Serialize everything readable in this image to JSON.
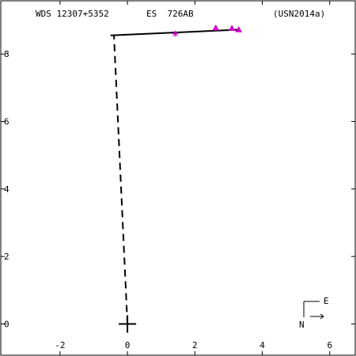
{
  "header": {
    "wds": "WDS 12307+5352",
    "discoverer": "ES  726AB",
    "reference": "(USN2014a)"
  },
  "compass": {
    "east": "E",
    "north": "N"
  },
  "chart_data": {
    "type": "scatter",
    "title": "",
    "xlabel": "",
    "ylabel": "",
    "xlim": [
      -3.78,
      6.78
    ],
    "ylim": [
      -0.95,
      9.6
    ],
    "x_ticks": [
      -2,
      0,
      2,
      4,
      6
    ],
    "y_ticks": [
      0,
      2,
      4,
      6,
      8
    ],
    "primary": {
      "x": 0,
      "y": 0
    },
    "orbit": [
      {
        "x": -0.5,
        "y": 8.55
      },
      {
        "x": 3.3,
        "y": 8.72
      }
    ],
    "periastron_line": [
      {
        "x": 0,
        "y": 0
      },
      {
        "x": -0.4,
        "y": 8.55
      }
    ],
    "observations": [
      {
        "x": 2.62,
        "y": 8.77,
        "marker": "triangle"
      },
      {
        "x": 3.1,
        "y": 8.76,
        "marker": "triangle"
      },
      {
        "x": 3.3,
        "y": 8.72,
        "marker": "triangle"
      }
    ],
    "first_observation": {
      "x": 1.42,
      "y": 8.6,
      "marker": "asterisk"
    },
    "marker_color": "#cc00cc",
    "line_color": "#000000"
  }
}
